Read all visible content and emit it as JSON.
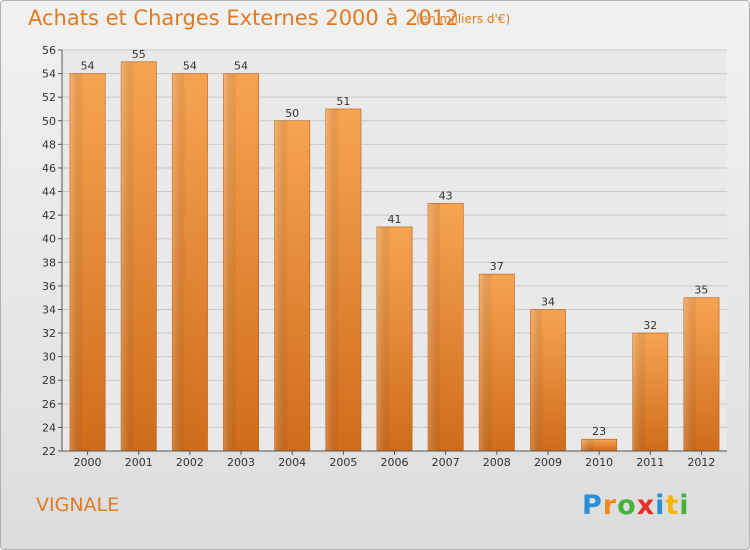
{
  "header": {
    "title": "Achats et Charges Externes 2000 à 2012",
    "subtitle": "(en milliers d'€)"
  },
  "footer": {
    "place": "VIGNALE",
    "logo_letters": [
      "P",
      "r",
      "o",
      "x",
      "i",
      "t",
      "i"
    ]
  },
  "colors": {
    "accent": "#e07b22",
    "bar_light": "#f5a04e",
    "bar_dark": "#cf6c1a",
    "logo": [
      "#2a8fd6",
      "#f08a1d",
      "#46b23a",
      "#e8302a",
      "#2a8fd6",
      "#f5b800",
      "#46b23a"
    ]
  },
  "chart_data": {
    "type": "bar",
    "title": "Achats et Charges Externes 2000 à 2012",
    "subtitle": "(en milliers d'€)",
    "categories": [
      "2000",
      "2001",
      "2002",
      "2003",
      "2004",
      "2005",
      "2006",
      "2007",
      "2008",
      "2009",
      "2010",
      "2011",
      "2012"
    ],
    "values": [
      54,
      55,
      54,
      54,
      50,
      51,
      41,
      43,
      37,
      34,
      23,
      32,
      35
    ],
    "data_labels": [
      "54",
      "55",
      "54",
      "54",
      "50",
      "51",
      "41",
      "43",
      "37",
      "34",
      "23",
      "32",
      "35"
    ],
    "ylim": [
      22,
      56
    ],
    "yticks": [
      22,
      24,
      26,
      28,
      30,
      32,
      34,
      36,
      38,
      40,
      42,
      44,
      46,
      48,
      50,
      52,
      54,
      56
    ],
    "ytick_labels": [
      "22",
      "24",
      "26",
      "28",
      "30",
      "32",
      "34",
      "36",
      "38",
      "40",
      "42",
      "44",
      "46",
      "48",
      "50",
      "52",
      "54",
      "56"
    ],
    "grid": true,
    "legend": "none"
  }
}
